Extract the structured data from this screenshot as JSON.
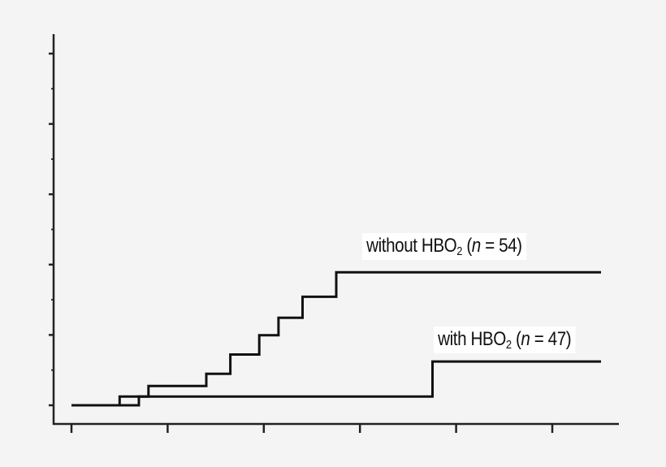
{
  "chart_data": {
    "type": "line",
    "step": true,
    "title": "",
    "xlabel": "",
    "ylabel": "",
    "xlim": [
      0,
      11
    ],
    "ylim": [
      0,
      10
    ],
    "x_tick_count": 6,
    "y_tick_count": 10,
    "grid": false,
    "series": [
      {
        "name": "without HBO2 (n = 54)",
        "label_parts": {
          "pre": "without HBO",
          "sub": "2",
          "mid": " (",
          "n": "n",
          "post": " = 54)"
        },
        "points": [
          [
            0,
            0
          ],
          [
            1,
            0
          ],
          [
            1,
            0.25
          ],
          [
            1.6,
            0.25
          ],
          [
            1.6,
            0.55
          ],
          [
            2.8,
            0.55
          ],
          [
            2.8,
            0.9
          ],
          [
            3.3,
            0.9
          ],
          [
            3.3,
            1.45
          ],
          [
            3.9,
            1.45
          ],
          [
            3.9,
            2.0
          ],
          [
            4.3,
            2.0
          ],
          [
            4.3,
            2.5
          ],
          [
            4.8,
            2.5
          ],
          [
            4.8,
            3.1
          ],
          [
            5.5,
            3.1
          ],
          [
            5.5,
            3.8
          ],
          [
            11,
            3.8
          ]
        ]
      },
      {
        "name": "with HBO2 (n = 47)",
        "label_parts": {
          "pre": "with HBO",
          "sub": "2",
          "mid": " (",
          "n": "n",
          "post": " = 47)"
        },
        "points": [
          [
            0,
            0
          ],
          [
            1.4,
            0
          ],
          [
            1.4,
            0.25
          ],
          [
            7.5,
            0.25
          ],
          [
            7.5,
            1.25
          ],
          [
            11,
            1.25
          ]
        ]
      }
    ],
    "colors": {
      "line": "#111111",
      "axis": "#222222",
      "background": "#f4f4f4",
      "label_bg": "#ffffff"
    }
  }
}
